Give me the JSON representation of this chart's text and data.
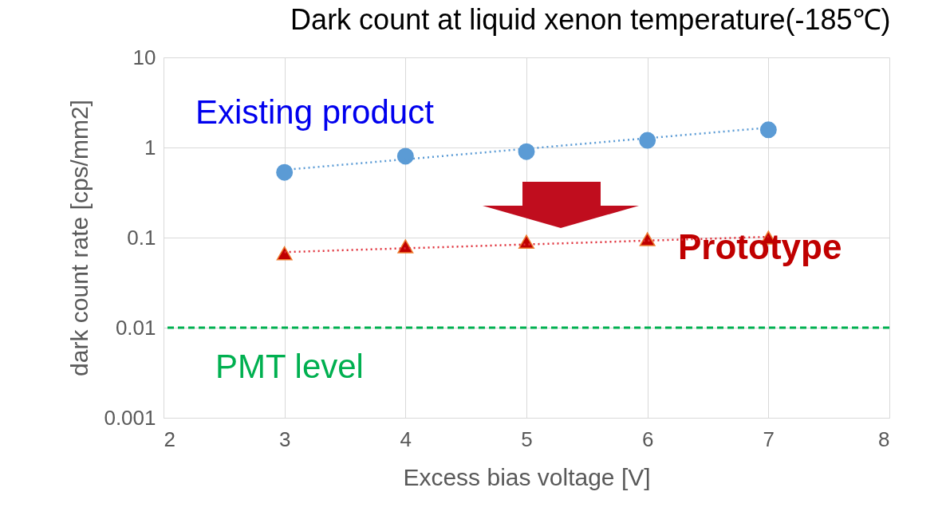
{
  "chart_data": {
    "type": "scatter",
    "title": "Dark count at liquid xenon temperature(-185℃)",
    "xlabel": "Excess bias voltage [V]",
    "ylabel": "dark count rate [cps/mm2]",
    "xlim": [
      2,
      8
    ],
    "xticks": [
      2,
      3,
      4,
      5,
      6,
      7,
      8
    ],
    "ylim": [
      0.001,
      10
    ],
    "yticks": [
      0.001,
      0.01,
      0.1,
      1,
      10
    ],
    "log": "y",
    "grid": true,
    "series": [
      {
        "name": "Existing product",
        "marker": "circle",
        "color": "#5b9bd5",
        "x": [
          3,
          4,
          5,
          6,
          7
        ],
        "values": [
          0.53,
          0.8,
          0.9,
          1.2,
          1.57
        ]
      },
      {
        "name": "Prototype",
        "marker": "triangle",
        "color": "#c00000",
        "x": [
          3,
          4,
          5,
          6,
          7
        ],
        "values": [
          0.067,
          0.08,
          0.09,
          0.096,
          0.1
        ]
      },
      {
        "type": "line",
        "marker": "none",
        "line_style": "dotted",
        "color": "#5b9bd5",
        "x": [
          3,
          7
        ],
        "values": [
          0.565,
          1.66
        ]
      },
      {
        "type": "line",
        "marker": "none",
        "line_style": "dotted",
        "color": "#e0303a",
        "x": [
          3,
          7
        ],
        "values": [
          0.069,
          0.102
        ]
      }
    ],
    "ref_lines": [
      {
        "axis": "y",
        "value": 0.01,
        "label": "PMT level",
        "color": "#00b050",
        "line_style": "dashed"
      }
    ]
  }
}
